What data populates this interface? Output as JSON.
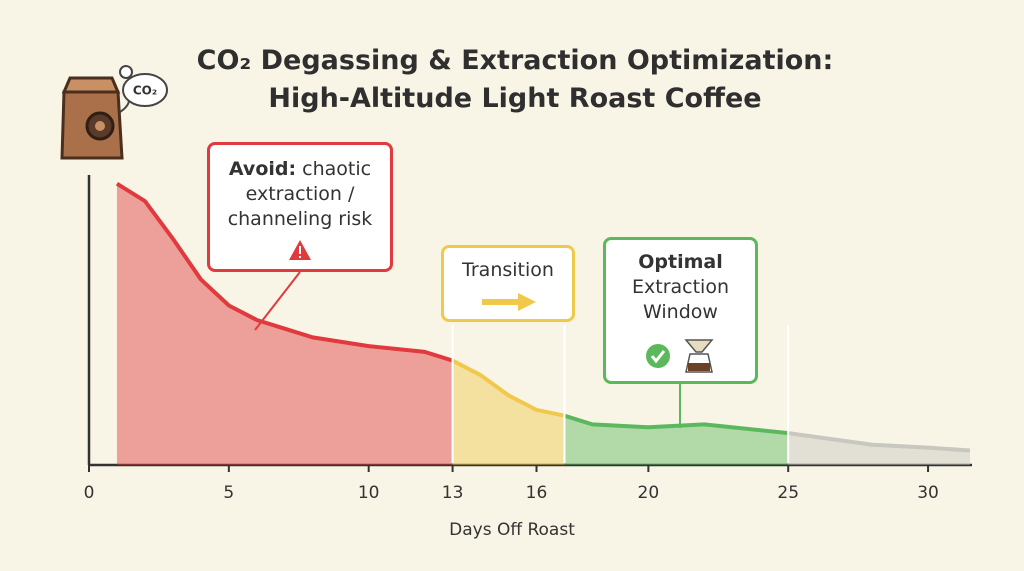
{
  "chart_data": {
    "type": "area",
    "title": "CO₂ Degassing & Extraction Optimization: High-Altitude Light Roast Coffee",
    "icon_label": "CO₂",
    "x_label": "Days Off Roast",
    "x": [
      1,
      2,
      3,
      4,
      5,
      6,
      7,
      8,
      10,
      12,
      13,
      14,
      15,
      16,
      17,
      18,
      20,
      22,
      25,
      28,
      30,
      31.5
    ],
    "values": [
      97,
      91,
      78,
      64,
      55,
      50,
      47,
      44,
      41,
      39,
      36,
      31,
      24,
      19,
      17,
      14,
      13,
      14,
      11,
      7,
      6,
      5
    ],
    "xlim": [
      0,
      31.5
    ],
    "ylim": [
      0,
      100
    ],
    "xticks": [
      0,
      5,
      10,
      13,
      16,
      20,
      25,
      30
    ],
    "zones": [
      {
        "start": 1,
        "end": 13,
        "color": "#e03a3e",
        "label_bold": "Avoid:",
        "label": "chaotic extraction / channeling risk"
      },
      {
        "start": 13,
        "end": 17,
        "color": "#f0c94a",
        "label": "Transition"
      },
      {
        "start": 17,
        "end": 25,
        "color": "#5cb85c",
        "label_bold": "Optimal",
        "label": "Extraction Window"
      },
      {
        "start": 25,
        "end": 31.5,
        "color": "#c8c8c0"
      }
    ]
  }
}
